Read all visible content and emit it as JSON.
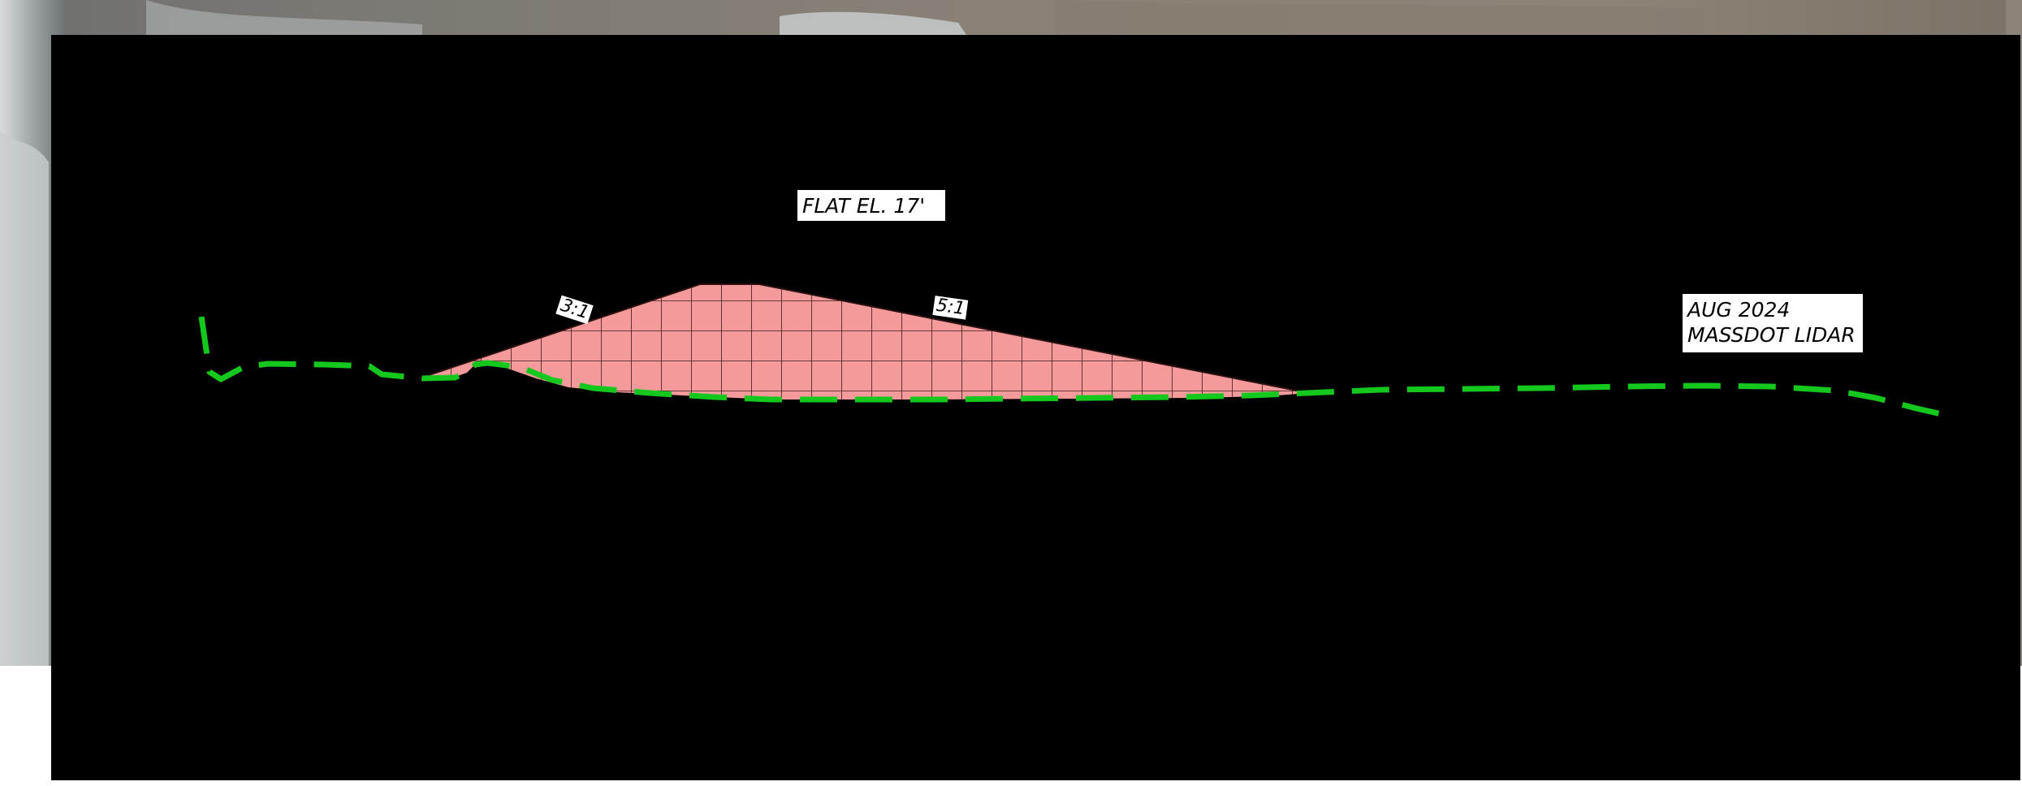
{
  "diagram": {
    "labels": {
      "flat_elevation": "FLAT EL. 17'",
      "left_slope": "3:1",
      "right_slope": "5:1",
      "survey_line1": "AUG 2024",
      "survey_line2": "MASSDOT LIDAR"
    },
    "colors": {
      "fill": "#f59a9a",
      "grid": "#2a1414",
      "survey_line": "#14c81e",
      "panel": "#000000",
      "label_bg": "#ffffff"
    }
  }
}
